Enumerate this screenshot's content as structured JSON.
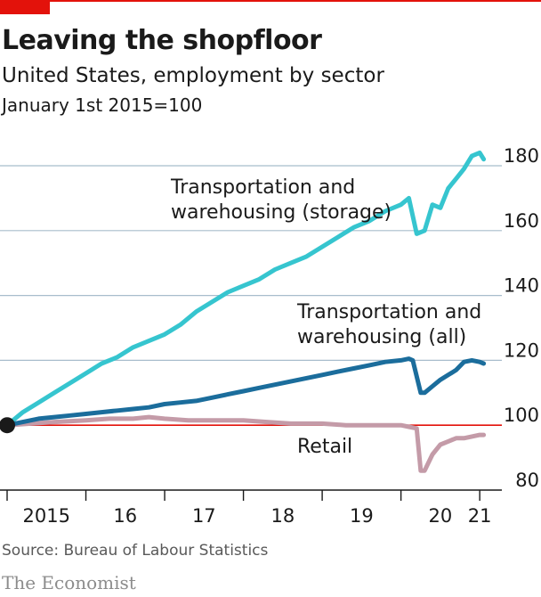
{
  "header": {
    "title": "Leaving the shopfloor",
    "subtitle": "United States, employment by sector",
    "note": "January 1st 2015=100"
  },
  "footer": {
    "source": "Source: Bureau of Labour Statistics",
    "brand": "The Economist"
  },
  "colors": {
    "storage": "#36c5cf",
    "all": "#1b6d9c",
    "retail": "#c49ba8",
    "baseline": "#e3120b",
    "grid": "#a8bdcc",
    "start_dot": "#1a1a1a",
    "brand_red": "#e3120b"
  },
  "chart_data": {
    "type": "line",
    "title": "Leaving the shopfloor",
    "subtitle": "United States, employment by sector",
    "note": "January 1st 2015=100",
    "ylim": [
      80,
      185
    ],
    "y_ticks": [
      80,
      100,
      120,
      140,
      160,
      180
    ],
    "y_tick_labels": [
      "80",
      "100",
      "120",
      "140",
      "160",
      "180"
    ],
    "y_axis_side": "right",
    "baseline": 100,
    "grid": true,
    "xlim": [
      2015.0,
      2021.1
    ],
    "x_ticks": [
      2015,
      2016,
      2017,
      2018,
      2019,
      2020,
      2021
    ],
    "x_tick_labels": [
      "2015",
      "16",
      "17",
      "18",
      "19",
      "20",
      "21"
    ],
    "series": [
      {
        "name": "Transportation and warehousing (storage)",
        "label_lines": [
          "Transportation and",
          "warehousing (storage)"
        ],
        "x": [
          2015.0,
          2015.2,
          2015.4,
          2015.6,
          2015.8,
          2016.0,
          2016.2,
          2016.4,
          2016.6,
          2016.8,
          2017.0,
          2017.2,
          2017.4,
          2017.6,
          2017.8,
          2018.0,
          2018.2,
          2018.4,
          2018.6,
          2018.8,
          2019.0,
          2019.2,
          2019.4,
          2019.6,
          2019.8,
          2020.0,
          2020.1,
          2020.2,
          2020.3,
          2020.4,
          2020.5,
          2020.6,
          2020.7,
          2020.8,
          2020.9,
          2021.0,
          2021.05
        ],
        "values": [
          100,
          104,
          107,
          110,
          113,
          116,
          119,
          121,
          124,
          126,
          128,
          131,
          135,
          138,
          141,
          143,
          145,
          148,
          150,
          152,
          155,
          158,
          161,
          163,
          166,
          168,
          170,
          159,
          160,
          168,
          167,
          173,
          176,
          179,
          183,
          184,
          182
        ]
      },
      {
        "name": "Transportation and warehousing (all)",
        "label_lines": [
          "Transportation and",
          "warehousing (all)"
        ],
        "x": [
          2015.0,
          2015.2,
          2015.4,
          2015.6,
          2015.8,
          2016.0,
          2016.2,
          2016.4,
          2016.6,
          2016.8,
          2017.0,
          2017.2,
          2017.4,
          2017.6,
          2017.8,
          2018.0,
          2018.2,
          2018.4,
          2018.6,
          2018.8,
          2019.0,
          2019.2,
          2019.4,
          2019.6,
          2019.8,
          2020.0,
          2020.1,
          2020.15,
          2020.25,
          2020.3,
          2020.4,
          2020.5,
          2020.6,
          2020.7,
          2020.8,
          2020.9,
          2021.0,
          2021.05
        ],
        "values": [
          100,
          101,
          102,
          102.5,
          103,
          103.5,
          104,
          104.5,
          105,
          105.5,
          106.5,
          107,
          107.5,
          108.5,
          109.5,
          110.5,
          111.5,
          112.5,
          113.5,
          114.5,
          115.5,
          116.5,
          117.5,
          118.5,
          119.5,
          120,
          120.5,
          120,
          110,
          110,
          112,
          114,
          115.5,
          117,
          119.5,
          120,
          119.5,
          119
        ]
      },
      {
        "name": "Retail",
        "label_lines": [
          "Retail"
        ],
        "x": [
          2015.0,
          2015.3,
          2015.6,
          2016.0,
          2016.3,
          2016.6,
          2016.8,
          2017.0,
          2017.3,
          2017.6,
          2018.0,
          2018.3,
          2018.6,
          2019.0,
          2019.3,
          2019.6,
          2020.0,
          2020.1,
          2020.2,
          2020.25,
          2020.3,
          2020.4,
          2020.5,
          2020.6,
          2020.7,
          2020.8,
          2020.9,
          2021.0,
          2021.05
        ],
        "values": [
          100,
          100.5,
          101,
          101.5,
          102,
          102,
          102.5,
          102,
          101.5,
          101.5,
          101.5,
          101,
          100.5,
          100.5,
          100,
          100,
          100,
          99.5,
          99,
          86,
          86,
          91,
          94,
          95,
          96,
          96,
          96.5,
          97,
          97
        ]
      }
    ],
    "start_point": {
      "x": 2015.0,
      "y": 100
    }
  }
}
